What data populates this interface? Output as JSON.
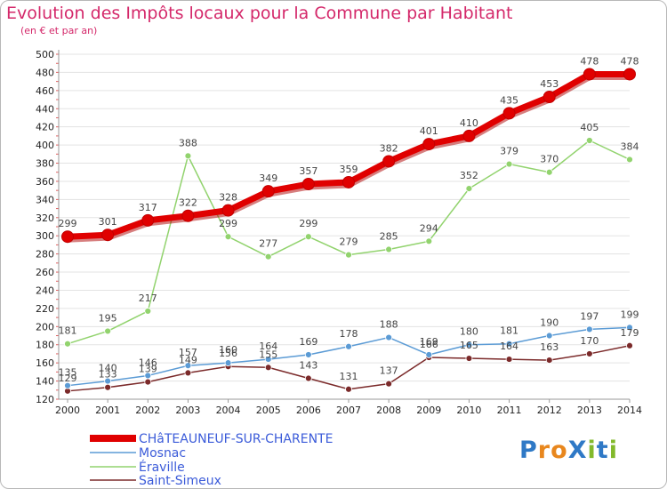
{
  "title": "Evolution des Impôts locaux pour la Commune par Habitant",
  "subtitle": "(en € et par an)",
  "logo": {
    "text": "ProXiti",
    "colors": [
      "#2f79c6",
      "#e8871e",
      "#e8871e",
      "#2f79c6",
      "#82b92b",
      "#2f79c6",
      "#82b92b"
    ]
  },
  "chart_data": {
    "type": "line",
    "x": [
      "2000",
      "2001",
      "2002",
      "2003",
      "2004",
      "2005",
      "2006",
      "2007",
      "2008",
      "2009",
      "2010",
      "2011",
      "2012",
      "2013",
      "2014"
    ],
    "yticks": [
      120,
      140,
      160,
      180,
      200,
      220,
      240,
      260,
      280,
      300,
      320,
      340,
      360,
      380,
      400,
      420,
      440,
      460,
      480,
      500
    ],
    "ylim": [
      120,
      500
    ],
    "grid": "horizontal",
    "legend_position": "bottom-left",
    "series": [
      {
        "name": "CHâTEAUNEUF-SUR-CHARENTE",
        "color": "#e00000",
        "values": [
          299,
          301,
          317,
          322,
          328,
          349,
          357,
          359,
          382,
          401,
          410,
          435,
          453,
          478,
          478
        ]
      },
      {
        "name": "Mosnac",
        "color": "#5b9bd5",
        "values": [
          135,
          140,
          146,
          157,
          160,
          164,
          169,
          178,
          188,
          169,
          180,
          181,
          190,
          197,
          199
        ]
      },
      {
        "name": "Éraville",
        "color": "#92d36e",
        "values": [
          181,
          195,
          217,
          388,
          299,
          277,
          299,
          279,
          285,
          294,
          352,
          379,
          370,
          405,
          384
        ]
      },
      {
        "name": "Saint-Simeux",
        "color": "#7b2a2a",
        "values": [
          129,
          133,
          139,
          149,
          156,
          155,
          143,
          131,
          137,
          166,
          165,
          164,
          163,
          170,
          179
        ]
      }
    ]
  }
}
